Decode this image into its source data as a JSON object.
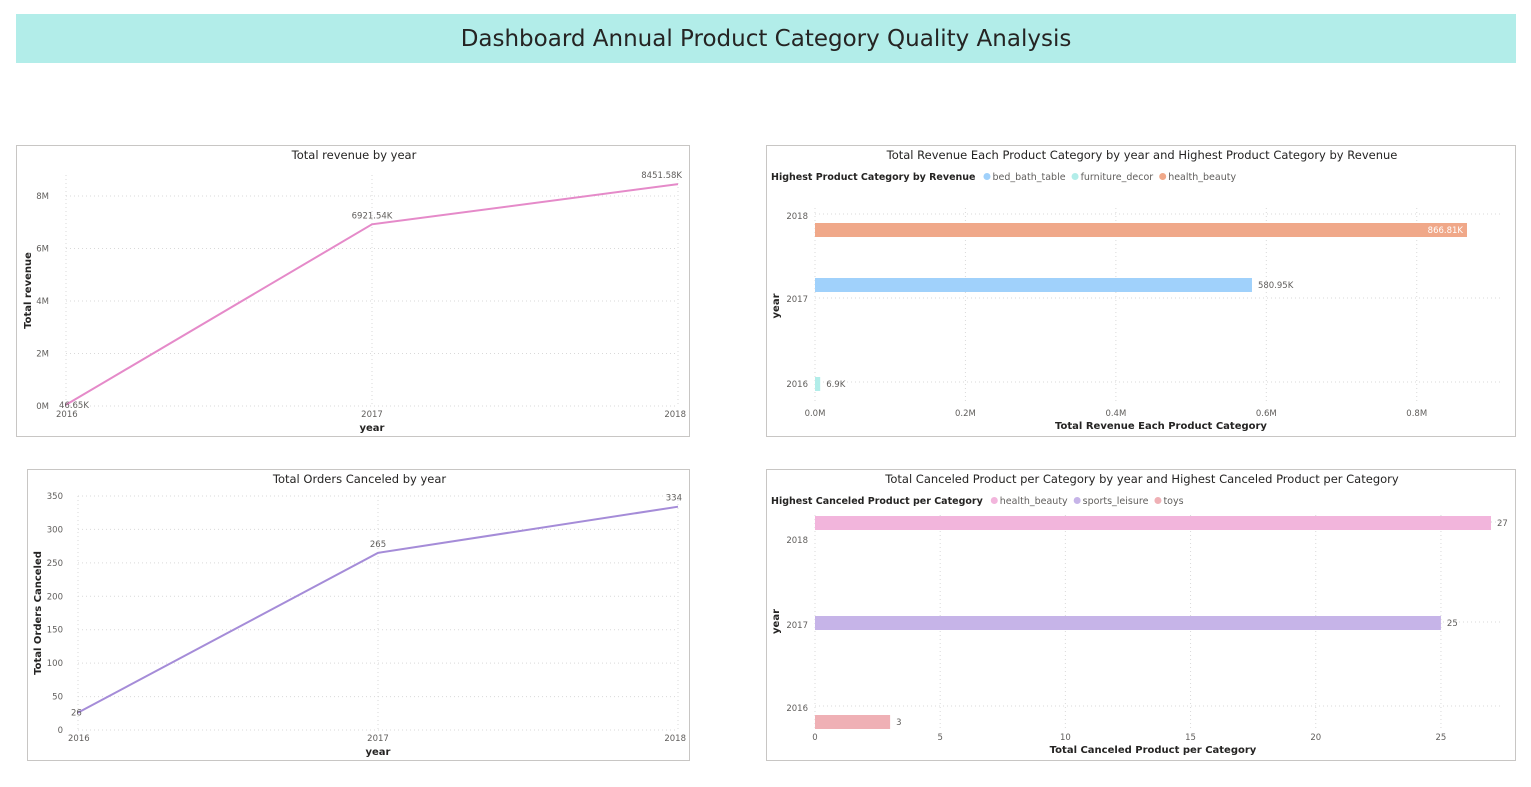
{
  "page": {
    "title": "Dashboard Annual Product Category Quality Analysis"
  },
  "colors": {
    "banner": "#b2ede9",
    "revenue_line": "#e58ac9",
    "orders_line": "#a58cd8",
    "bed_bath_table": "#a0d1fb",
    "furniture_decor": "#b2ede9",
    "health_beauty_rev": "#f0a889",
    "health_beauty_cancel": "#f2b5dc",
    "sports_leisure": "#c6b4e8",
    "toys": "#efb0b5"
  },
  "chart_data": [
    {
      "id": "revenue",
      "type": "line",
      "title": "Total revenue by year",
      "xlabel": "year",
      "ylabel": "Total revenue",
      "x": [
        "2016",
        "2017",
        "2018"
      ],
      "series": [
        {
          "values": [
            46650,
            6921540,
            8451580
          ],
          "labels": [
            "46.65K",
            "6921.54K",
            "8451.58K"
          ],
          "color": "#e58ac9"
        }
      ],
      "yticks": [
        0,
        2000000,
        4000000,
        6000000,
        8000000
      ],
      "ytick_labels": [
        "0M",
        "2M",
        "4M",
        "6M",
        "8M"
      ],
      "ylim": [
        0,
        8800000
      ],
      "grid": true
    },
    {
      "id": "orders",
      "type": "line",
      "title": "Total Orders Canceled by year",
      "xlabel": "year",
      "ylabel": "Total Orders Canceled",
      "x": [
        "2016",
        "2017",
        "2018"
      ],
      "series": [
        {
          "values": [
            26,
            265,
            334
          ],
          "labels": [
            "26",
            "265",
            "334"
          ],
          "color": "#a58cd8"
        }
      ],
      "yticks": [
        0,
        50,
        100,
        150,
        200,
        250,
        300,
        350
      ],
      "ytick_labels": [
        "0",
        "50",
        "100",
        "150",
        "200",
        "250",
        "300",
        "350"
      ],
      "ylim": [
        0,
        350
      ],
      "grid": true
    },
    {
      "id": "revcat",
      "type": "bar",
      "orientation": "horizontal",
      "title": "Total Revenue Each Product Category by year and Highest Product Category by Revenue",
      "xlabel": "Total Revenue Each Product Category",
      "ylabel": "year",
      "legend_title": "Highest Product Category by Revenue",
      "legend": [
        {
          "name": "bed_bath_table",
          "color": "#a0d1fb"
        },
        {
          "name": "furniture_decor",
          "color": "#b2ede9"
        },
        {
          "name": "health_beauty",
          "color": "#f0a889"
        }
      ],
      "categories": [
        "2018",
        "2017",
        "2016"
      ],
      "bars": [
        {
          "year": "2018",
          "category": "health_beauty",
          "value": 866810,
          "label": "866.81K",
          "color": "#f0a889"
        },
        {
          "year": "2017",
          "category": "bed_bath_table",
          "value": 580950,
          "label": "580.95K",
          "color": "#a0d1fb"
        },
        {
          "year": "2016",
          "category": "furniture_decor",
          "value": 6900,
          "label": "6.9K",
          "color": "#b2ede9"
        }
      ],
      "xticks": [
        0,
        200000,
        400000,
        600000,
        800000
      ],
      "xtick_labels": [
        "0.0M",
        "0.2M",
        "0.4M",
        "0.6M",
        "0.8M"
      ],
      "xlim": [
        0,
        920000
      ],
      "grid": true,
      "legend_position": "top-left"
    },
    {
      "id": "cancat",
      "type": "bar",
      "orientation": "horizontal",
      "title": "Total Canceled Product per Category by year and Highest Canceled Product per Category",
      "xlabel": "Total Canceled Product per Category",
      "ylabel": "year",
      "legend_title": "Highest Canceled Product per Category",
      "legend": [
        {
          "name": "health_beauty",
          "color": "#f2b5dc"
        },
        {
          "name": "sports_leisure",
          "color": "#c6b4e8"
        },
        {
          "name": "toys",
          "color": "#efb0b5"
        }
      ],
      "categories": [
        "2018",
        "2017",
        "2016"
      ],
      "bars": [
        {
          "year": "2018",
          "category": "health_beauty",
          "value": 27,
          "label": "27",
          "color": "#f2b5dc"
        },
        {
          "year": "2017",
          "category": "sports_leisure",
          "value": 25,
          "label": "25",
          "color": "#c6b4e8"
        },
        {
          "year": "2016",
          "category": "toys",
          "value": 3,
          "label": "3",
          "color": "#efb0b5"
        }
      ],
      "xticks": [
        0,
        5,
        10,
        15,
        20,
        25
      ],
      "xtick_labels": [
        "0",
        "5",
        "10",
        "15",
        "20",
        "25"
      ],
      "xlim": [
        0,
        27
      ],
      "grid": true,
      "legend_position": "top-left"
    }
  ]
}
